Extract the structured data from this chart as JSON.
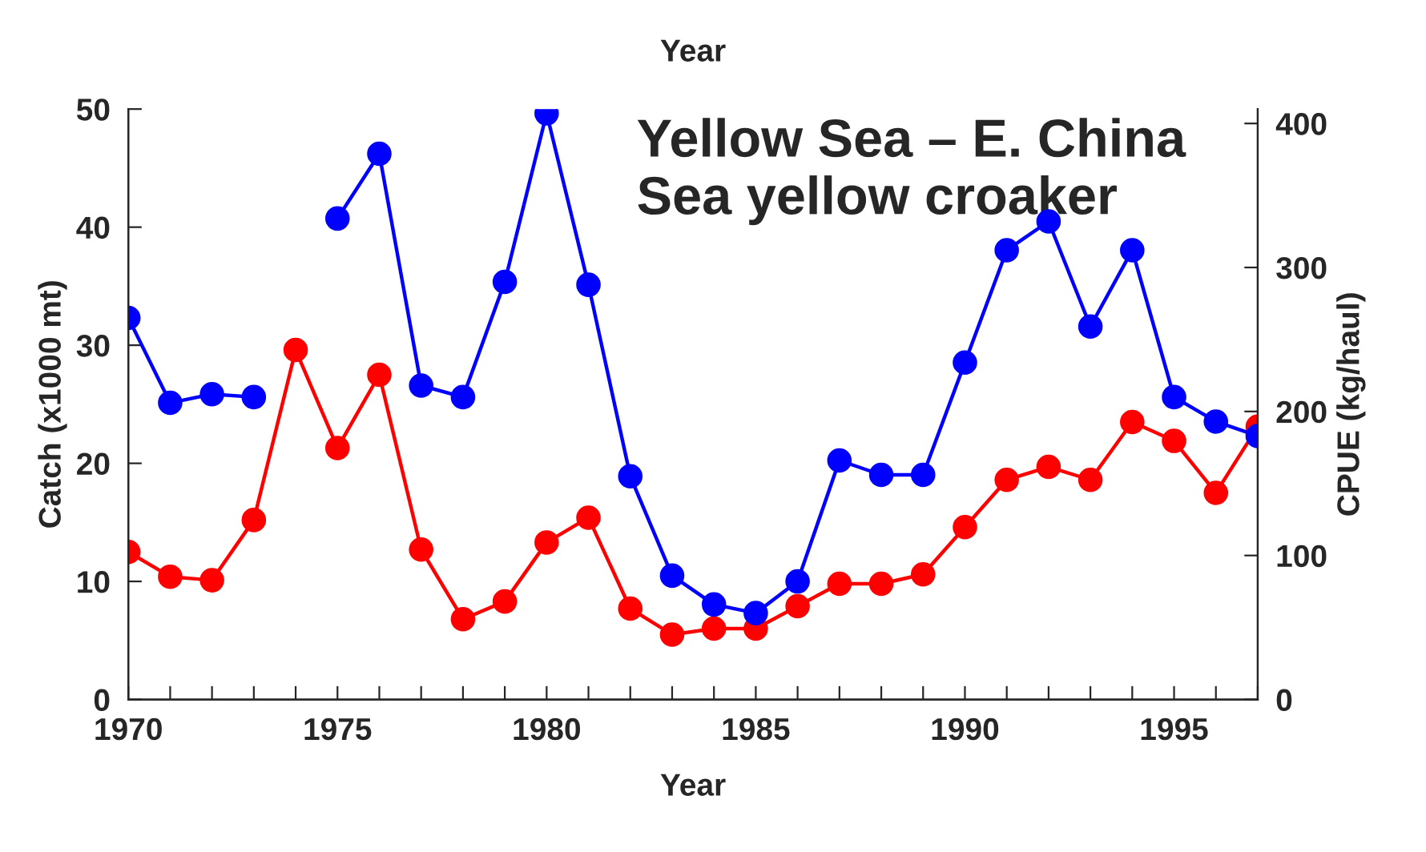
{
  "chart_data": {
    "type": "line",
    "title": "Yellow Sea – E. China Sea yellow croaker",
    "xlabel": "Year",
    "ylabel": "Catch (x1000 mt)",
    "y2label": "CPUE (kg/haul)",
    "annotations": [
      "Year"
    ],
    "x": [
      1970,
      1971,
      1972,
      1973,
      1974,
      1975,
      1976,
      1977,
      1978,
      1979,
      1980,
      1981,
      1982,
      1983,
      1984,
      1985,
      1986,
      1987,
      1988,
      1989,
      1990,
      1991,
      1992,
      1993,
      1994,
      1995,
      1996,
      1997
    ],
    "series": [
      {
        "color": "#ff0000",
        "values": [
          12.5,
          10.4,
          10.1,
          15.2,
          29.6,
          21.3,
          27.5,
          12.7,
          6.8,
          8.3,
          13.3,
          15.4,
          7.7,
          5.5,
          6.0,
          6.0,
          7.9,
          9.8,
          9.8,
          10.6,
          14.6,
          18.6,
          19.7,
          18.6,
          23.5,
          21.9,
          17.5,
          23.1
        ]
      },
      {
        "color": "#0000ff",
        "axis": "y2",
        "values": [
          265,
          206,
          212,
          210,
          null,
          334,
          379,
          218,
          210,
          290,
          407,
          288,
          155,
          86,
          66,
          60,
          82,
          166,
          156,
          156,
          234,
          312,
          332,
          259,
          312,
          210,
          193,
          183
        ]
      }
    ],
    "xlim": [
      1970,
      1997
    ],
    "xticks": [
      1970,
      {
        "value": 1971,
        "label": null
      },
      {
        "value": 1972,
        "label": null
      },
      {
        "value": 1973,
        "label": null
      },
      {
        "value": 1974,
        "label": null
      },
      1975,
      {
        "value": 1976,
        "label": null
      },
      {
        "value": 1977,
        "label": null
      },
      {
        "value": 1978,
        "label": null
      },
      {
        "value": 1979,
        "label": null
      },
      1980,
      {
        "value": 1981,
        "label": null
      },
      {
        "value": 1982,
        "label": null
      },
      {
        "value": 1983,
        "label": null
      },
      {
        "value": 1984,
        "label": null
      },
      1985,
      {
        "value": 1986,
        "label": null
      },
      {
        "value": 1987,
        "label": null
      },
      {
        "value": 1988,
        "label": null
      },
      {
        "value": 1989,
        "label": null
      },
      1990,
      {
        "value": 1991,
        "label": null
      },
      {
        "value": 1992,
        "label": null
      },
      {
        "value": 1993,
        "label": null
      },
      {
        "value": 1994,
        "label": null
      },
      1995,
      {
        "value": 1996,
        "label": null
      },
      {
        "value": 1997,
        "label": null
      }
    ],
    "ylim": [
      0,
      50
    ],
    "yticks": [
      0,
      10,
      20,
      30,
      40,
      50
    ],
    "y2lim": [
      0,
      410
    ],
    "y2ticks": [
      0,
      100,
      200,
      300,
      400
    ],
    "grid": false,
    "legend": false,
    "marker": "circle",
    "line_style": "solid"
  }
}
